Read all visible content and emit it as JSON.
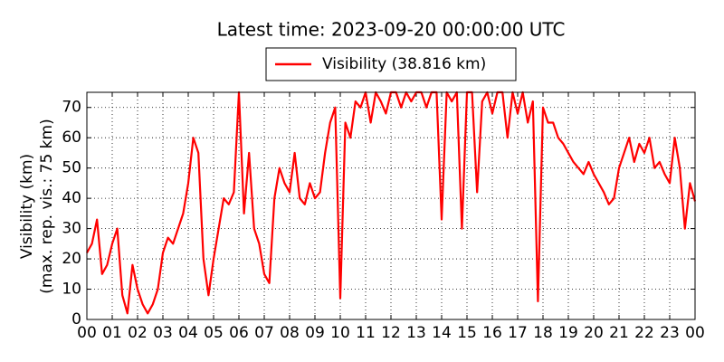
{
  "chart_data": {
    "type": "line",
    "title": "Latest time: 2023-09-20 00:00:00 UTC",
    "ylabel": [
      "Visibility (km)",
      "(max. rep. vis.: 75 km)"
    ],
    "xlim": [
      0,
      24
    ],
    "xticks": [
      {
        "value": 0,
        "label": "00"
      },
      {
        "value": 1,
        "label": "01"
      },
      {
        "value": 2,
        "label": "02"
      },
      {
        "value": 3,
        "label": "03"
      },
      {
        "value": 4,
        "label": "04"
      },
      {
        "value": 5,
        "label": "05"
      },
      {
        "value": 6,
        "label": "06"
      },
      {
        "value": 7,
        "label": "07"
      },
      {
        "value": 8,
        "label": "08"
      },
      {
        "value": 9,
        "label": "09"
      },
      {
        "value": 10,
        "label": "10"
      },
      {
        "value": 11,
        "label": "11"
      },
      {
        "value": 12,
        "label": "12"
      },
      {
        "value": 13,
        "label": "13"
      },
      {
        "value": 14,
        "label": "14"
      },
      {
        "value": 15,
        "label": "15"
      },
      {
        "value": 16,
        "label": "16"
      },
      {
        "value": 17,
        "label": "17"
      },
      {
        "value": 18,
        "label": "18"
      },
      {
        "value": 19,
        "label": "19"
      },
      {
        "value": 20,
        "label": "20"
      },
      {
        "value": 21,
        "label": "21"
      },
      {
        "value": 22,
        "label": "22"
      },
      {
        "value": 23,
        "label": "23"
      },
      {
        "value": 24,
        "label": "00"
      }
    ],
    "ylim": [
      0,
      75
    ],
    "yticks": [
      0,
      10,
      20,
      30,
      40,
      50,
      60,
      70
    ],
    "grid": true,
    "legend": "upper center",
    "x": [
      0,
      0.2,
      0.4,
      0.6,
      0.8,
      1,
      1.2,
      1.4,
      1.6,
      1.8,
      2,
      2.2,
      2.4,
      2.6,
      2.8,
      3,
      3.2,
      3.4,
      3.6,
      3.8,
      4,
      4.2,
      4.4,
      4.6,
      4.8,
      5,
      5.2,
      5.4,
      5.6,
      5.8,
      6,
      6.2,
      6.4,
      6.6,
      6.8,
      7,
      7.2,
      7.4,
      7.6,
      7.8,
      8,
      8.2,
      8.4,
      8.6,
      8.8,
      9,
      9.2,
      9.4,
      9.6,
      9.8,
      10,
      10.2,
      10.4,
      10.6,
      10.8,
      11,
      11.2,
      11.4,
      11.6,
      11.8,
      12,
      12.2,
      12.4,
      12.6,
      12.8,
      13,
      13.2,
      13.4,
      13.6,
      13.8,
      14,
      14.2,
      14.4,
      14.6,
      14.8,
      15,
      15.2,
      15.4,
      15.6,
      15.8,
      16,
      16.2,
      16.4,
      16.6,
      16.8,
      17,
      17.2,
      17.4,
      17.6,
      17.8,
      18,
      18.2,
      18.4,
      18.6,
      18.8,
      19,
      19.2,
      19.4,
      19.6,
      19.8,
      20,
      20.2,
      20.4,
      20.6,
      20.8,
      21,
      21.2,
      21.4,
      21.6,
      21.8,
      22,
      22.2,
      22.4,
      22.6,
      22.8,
      23,
      23.2,
      23.4,
      23.6,
      23.8,
      24
    ],
    "series": [
      {
        "name": "Visibility (38.816 km)",
        "color": "#ff0000",
        "values": [
          22,
          25,
          33,
          15,
          18,
          25,
          30,
          8,
          2,
          18,
          10,
          5,
          2,
          5,
          10,
          22,
          27,
          25,
          30,
          35,
          45,
          60,
          55,
          20,
          8,
          20,
          30,
          40,
          38,
          42,
          75,
          35,
          55,
          30,
          25,
          15,
          12,
          40,
          50,
          45,
          42,
          55,
          40,
          38,
          45,
          40,
          42,
          55,
          65,
          70,
          7,
          65,
          60,
          72,
          70,
          75,
          65,
          75,
          72,
          68,
          75,
          75,
          70,
          75,
          72,
          75,
          75,
          70,
          75,
          75,
          33,
          75,
          72,
          75,
          30,
          75,
          75,
          42,
          72,
          75,
          68,
          75,
          75,
          60,
          75,
          68,
          75,
          65,
          72,
          6,
          70,
          65,
          65,
          60,
          58,
          55,
          52,
          50,
          48,
          52,
          48,
          45,
          42,
          38,
          40,
          50,
          55,
          60,
          52,
          58,
          55,
          60,
          50,
          52,
          48,
          45,
          60,
          50,
          30,
          45,
          39
        ]
      }
    ]
  }
}
